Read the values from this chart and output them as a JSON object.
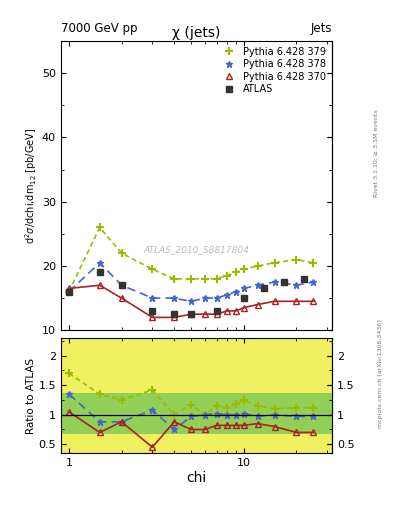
{
  "title_main": "χ (jets)",
  "header_left": "7000 GeV pp",
  "header_right": "Jets",
  "watermark": "ATLAS_2010_S8817804",
  "rivet_text": "Rivet 3.1.10; ≥ 3.1M events",
  "mcplots_text": "mcplots.cern.ch [arXiv:1306.3436]",
  "ylabel_main": "d²σ/dchi,dm₁₂ [pb/GeV]",
  "ylabel_ratio": "Ratio to ATLAS",
  "xlabel": "chi",
  "atlas_chi": [
    1.0,
    1.5,
    2.0,
    3.0,
    4.0,
    5.0,
    7.0,
    10.0,
    13.0,
    17.0,
    22.0
  ],
  "atlas_y": [
    16.0,
    19.0,
    17.0,
    13.0,
    12.5,
    12.5,
    13.0,
    15.0,
    16.5,
    17.5,
    18.0
  ],
  "py370_chi": [
    1.0,
    1.5,
    2.0,
    3.0,
    4.0,
    5.0,
    6.0,
    7.0,
    8.0,
    9.0,
    10.0,
    12.0,
    15.0,
    20.0,
    25.0
  ],
  "py370_y": [
    16.5,
    17.0,
    15.0,
    12.0,
    12.0,
    12.5,
    12.5,
    12.5,
    13.0,
    13.0,
    13.5,
    14.0,
    14.5,
    14.5,
    14.5
  ],
  "py378_chi": [
    1.0,
    1.5,
    2.0,
    3.0,
    4.0,
    5.0,
    6.0,
    7.0,
    8.0,
    9.0,
    10.0,
    12.0,
    15.0,
    20.0,
    25.0
  ],
  "py378_y": [
    16.0,
    20.5,
    17.0,
    15.0,
    15.0,
    14.5,
    15.0,
    15.0,
    15.5,
    16.0,
    16.5,
    17.0,
    17.5,
    17.0,
    17.5
  ],
  "py379_chi": [
    1.0,
    1.5,
    2.0,
    3.0,
    4.0,
    5.0,
    6.0,
    7.0,
    8.0,
    9.0,
    10.0,
    12.0,
    15.0,
    20.0,
    25.0
  ],
  "py379_y": [
    16.0,
    26.0,
    22.0,
    19.5,
    18.0,
    18.0,
    18.0,
    18.0,
    18.5,
    19.0,
    19.5,
    20.0,
    20.5,
    21.0,
    20.5
  ],
  "r370_chi": [
    1.0,
    1.5,
    2.0,
    3.0,
    4.0,
    5.0,
    6.0,
    7.0,
    8.0,
    9.0,
    10.0,
    12.0,
    15.0,
    20.0,
    25.0
  ],
  "r370_y": [
    1.05,
    0.7,
    0.88,
    0.45,
    0.88,
    0.75,
    0.75,
    0.82,
    0.82,
    0.82,
    0.82,
    0.85,
    0.8,
    0.7,
    0.7
  ],
  "r378_chi": [
    1.0,
    1.5,
    2.0,
    3.0,
    4.0,
    5.0,
    6.0,
    7.0,
    8.0,
    9.0,
    10.0,
    12.0,
    15.0,
    20.0,
    25.0
  ],
  "r378_y": [
    1.35,
    0.88,
    0.88,
    1.08,
    0.75,
    0.97,
    1.0,
    1.02,
    1.0,
    1.0,
    1.02,
    0.97,
    1.0,
    0.97,
    0.97
  ],
  "r379_chi": [
    1.0,
    1.5,
    2.0,
    3.0,
    4.0,
    5.0,
    6.0,
    7.0,
    8.0,
    9.0,
    10.0,
    12.0,
    15.0,
    20.0,
    25.0
  ],
  "r379_y": [
    1.7,
    1.35,
    1.25,
    1.42,
    1.0,
    1.17,
    1.0,
    1.15,
    1.12,
    1.18,
    1.25,
    1.15,
    1.1,
    1.12,
    1.12
  ],
  "atlas_color": "#333333",
  "color370": "#aa2222",
  "color378": "#4466cc",
  "color379": "#99bb00",
  "ylim_main": [
    10,
    55
  ],
  "ylim_ratio": [
    0.35,
    2.3
  ],
  "yticks_main": [
    10,
    20,
    30,
    40,
    50
  ],
  "yticks_ratio": [
    0.5,
    1.0,
    1.5,
    2.0
  ]
}
